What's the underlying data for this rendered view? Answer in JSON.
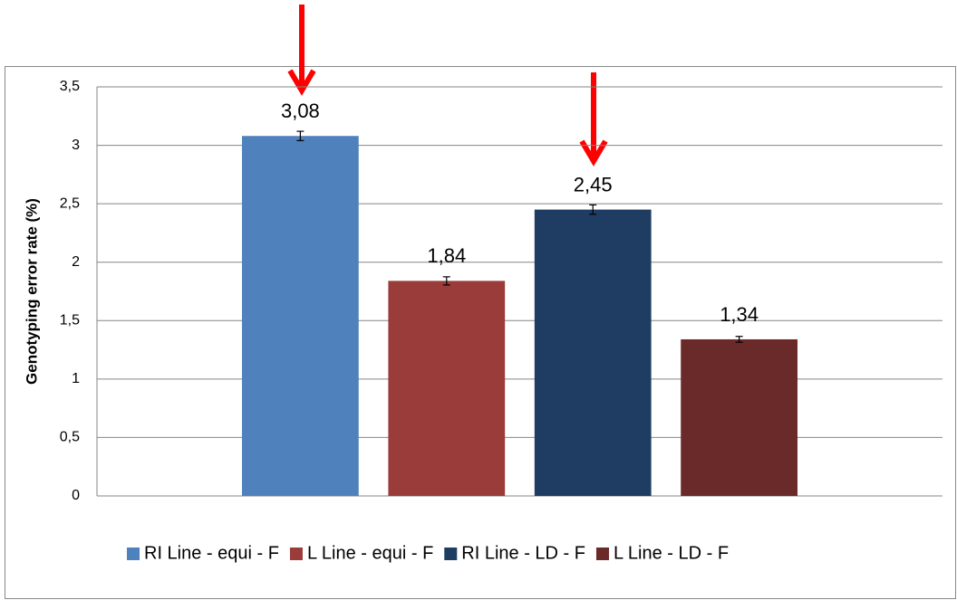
{
  "chart_data": {
    "type": "bar",
    "y_label": "Genotyping error rate (%)",
    "categories": [
      null
    ],
    "series": [
      {
        "name": "RI Line - equi - F",
        "color": "#4f81bd",
        "values": [
          3.08
        ],
        "value_labels": [
          "3,08"
        ],
        "errors": [
          0.04
        ]
      },
      {
        "name": "L Line - equi - F",
        "color": "#993c3a",
        "values": [
          1.84
        ],
        "value_labels": [
          "1,84"
        ],
        "errors": [
          0.035
        ]
      },
      {
        "name": "RI Line - LD - F",
        "color": "#1f3d63",
        "values": [
          2.45
        ],
        "value_labels": [
          "2,45"
        ],
        "errors": [
          0.04
        ]
      },
      {
        "name": "L Line - LD - F",
        "color": "#6a2a29",
        "values": [
          1.34
        ],
        "value_labels": [
          "1,34"
        ],
        "errors": [
          0.025
        ]
      }
    ],
    "ylim": [
      0,
      3.5
    ],
    "yticks": [
      0,
      {
        "value": 0.5,
        "label": "0,5"
      },
      1,
      {
        "value": 1.5,
        "label": "1,5"
      },
      2,
      {
        "value": 2.5,
        "label": "2,5"
      },
      3,
      {
        "value": 3.5,
        "label": "3,5"
      }
    ],
    "grid": true,
    "legend": "bottom"
  }
}
